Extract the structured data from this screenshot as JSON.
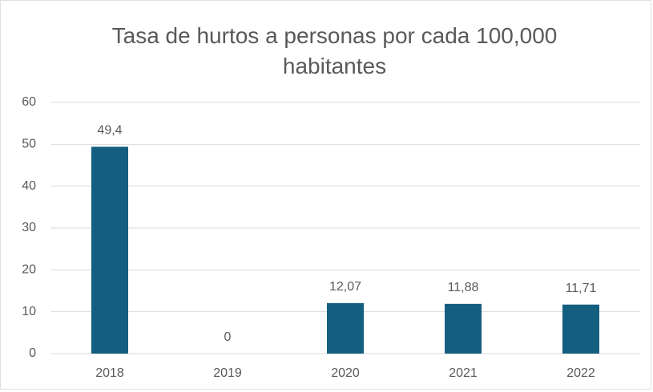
{
  "chart_data": {
    "type": "bar",
    "title": "Tasa de hurtos a personas por cada 100,000 habitantes",
    "categories": [
      "2018",
      "2019",
      "2020",
      "2021",
      "2022"
    ],
    "values": [
      49.4,
      0,
      12.07,
      11.88,
      11.71
    ],
    "value_labels": [
      "49,4",
      "0",
      "12,07",
      "11,88",
      "11,71"
    ],
    "color": "#145e80",
    "ylim": [
      0,
      60
    ],
    "yticks": [
      0,
      10,
      20,
      30,
      40,
      50,
      60
    ],
    "grid": true
  }
}
